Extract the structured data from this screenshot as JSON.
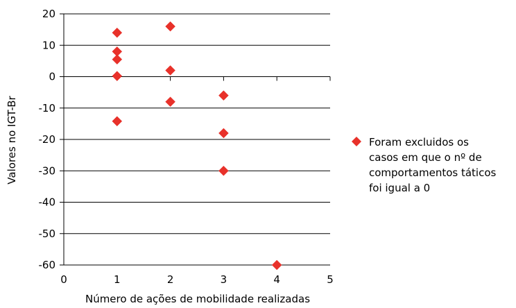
{
  "chart_data": {
    "type": "scatter",
    "title": "",
    "xlabel": "Número de ações de mobilidade realizadas",
    "ylabel": "Valores no IGT-Br",
    "xlim": [
      0,
      5
    ],
    "ylim": [
      -60,
      20
    ],
    "xticks": [
      0,
      1,
      2,
      3,
      4,
      5
    ],
    "yticks": [
      20,
      10,
      0,
      -10,
      -20,
      -30,
      -40,
      -50,
      -60
    ],
    "grid": "horizontal",
    "legend_position": "right",
    "marker": "diamond",
    "color": "#e8312a",
    "series": [
      {
        "name": "Foram excluidos os casos em que o nº de comportamentos táticos foi igual a 0",
        "legend_lines": [
          "Foram excluidos os",
          "casos em que o nº de",
          "comportamentos táticos",
          "foi igual a 0"
        ],
        "points": [
          {
            "x": 1,
            "y": 14
          },
          {
            "x": 1,
            "y": 8
          },
          {
            "x": 1,
            "y": 5.5
          },
          {
            "x": 1,
            "y": 0.2
          },
          {
            "x": 1,
            "y": -14.2
          },
          {
            "x": 2,
            "y": 16
          },
          {
            "x": 2,
            "y": 2
          },
          {
            "x": 2,
            "y": -8
          },
          {
            "x": 3,
            "y": -6
          },
          {
            "x": 3,
            "y": -18
          },
          {
            "x": 3,
            "y": -30
          },
          {
            "x": 4,
            "y": -60
          }
        ]
      }
    ]
  }
}
